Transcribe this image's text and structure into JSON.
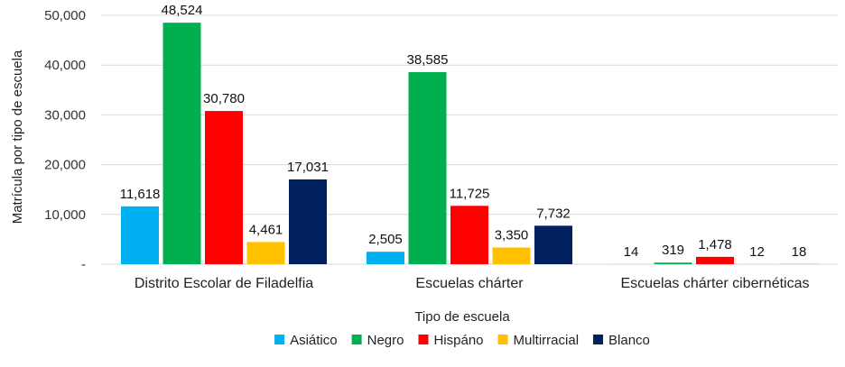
{
  "chart_data": {
    "type": "bar",
    "xlabel": "Tipo de escuela",
    "ylabel": "Matrícula por tipo de escuela",
    "categories": [
      "Distrito Escolar de Filadelfia",
      "Escuelas chárter",
      "Escuelas chárter cibernéticas"
    ],
    "series": [
      {
        "name": "Asiático",
        "color": "#00b0f0",
        "values": [
          11618,
          2505,
          14
        ],
        "labels": [
          "11,618",
          "2,505",
          "14"
        ]
      },
      {
        "name": "Negro",
        "color": "#00b050",
        "values": [
          48524,
          38585,
          319
        ],
        "labels": [
          "48,524",
          "38,585",
          "319"
        ]
      },
      {
        "name": "Hispáno",
        "color": "#ff0000",
        "values": [
          30780,
          11725,
          1478
        ],
        "labels": [
          "30,780",
          "11,725",
          "1,478"
        ]
      },
      {
        "name": "Multirracial",
        "color": "#ffc000",
        "values": [
          4461,
          3350,
          12
        ],
        "labels": [
          "4,461",
          "3,350",
          "12"
        ]
      },
      {
        "name": "Blanco",
        "color": "#002060",
        "values": [
          17031,
          7732,
          18
        ],
        "labels": [
          "17,031",
          "7,732",
          "18"
        ]
      }
    ],
    "ylim": [
      0,
      50000
    ],
    "yticks": [
      0,
      10000,
      20000,
      30000,
      40000,
      50000
    ],
    "ytick_labels": [
      "-",
      "10,000",
      "20,000",
      "30,000",
      "40,000",
      "50,000"
    ],
    "grid": true,
    "legend": "bottom"
  }
}
